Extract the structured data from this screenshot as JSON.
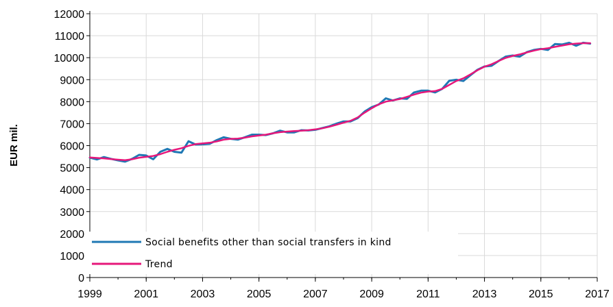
{
  "chart_data": {
    "type": "line",
    "ylabel": "EUR mil.",
    "xlabel": "",
    "xlim": [
      1999,
      2017
    ],
    "ylim": [
      0,
      12000
    ],
    "x_ticks": [
      1999,
      2001,
      2003,
      2005,
      2007,
      2009,
      2011,
      2013,
      2015,
      2017
    ],
    "y_ticks": [
      0,
      1000,
      2000,
      3000,
      4000,
      5000,
      6000,
      7000,
      8000,
      9000,
      10000,
      11000,
      12000
    ],
    "grid": true,
    "legend_position": "bottom-left",
    "x": [
      1999.0,
      1999.25,
      1999.5,
      1999.75,
      2000.0,
      2000.25,
      2000.5,
      2000.75,
      2001.0,
      2001.25,
      2001.5,
      2001.75,
      2002.0,
      2002.25,
      2002.5,
      2002.75,
      2003.0,
      2003.25,
      2003.5,
      2003.75,
      2004.0,
      2004.25,
      2004.5,
      2004.75,
      2005.0,
      2005.25,
      2005.5,
      2005.75,
      2006.0,
      2006.25,
      2006.5,
      2006.75,
      2007.0,
      2007.25,
      2007.5,
      2007.75,
      2008.0,
      2008.25,
      2008.5,
      2008.75,
      2009.0,
      2009.25,
      2009.5,
      2009.75,
      2010.0,
      2010.25,
      2010.5,
      2010.75,
      2011.0,
      2011.25,
      2011.5,
      2011.75,
      2012.0,
      2012.25,
      2012.5,
      2012.75,
      2013.0,
      2013.25,
      2013.5,
      2013.75,
      2014.0,
      2014.25,
      2014.5,
      2014.75,
      2015.0,
      2015.25,
      2015.5,
      2015.75,
      2016.0,
      2016.25,
      2016.5,
      2016.75
    ],
    "series": [
      {
        "name": "Social benefits other than social transfers in kind",
        "color": "#1f78b4",
        "values": [
          5450,
          5370,
          5480,
          5400,
          5330,
          5270,
          5400,
          5580,
          5550,
          5380,
          5720,
          5850,
          5720,
          5680,
          6200,
          6050,
          6060,
          6080,
          6250,
          6380,
          6310,
          6270,
          6380,
          6500,
          6500,
          6480,
          6560,
          6680,
          6600,
          6600,
          6700,
          6690,
          6720,
          6800,
          6880,
          7000,
          7100,
          7100,
          7250,
          7550,
          7750,
          7870,
          8150,
          8050,
          8150,
          8130,
          8420,
          8500,
          8500,
          8420,
          8580,
          8950,
          9000,
          8940,
          9200,
          9450,
          9600,
          9630,
          9850,
          10050,
          10100,
          10050,
          10250,
          10350,
          10400,
          10350,
          10620,
          10600,
          10680,
          10540,
          10680,
          10640
        ]
      },
      {
        "name": "Trend",
        "color": "#e6177a",
        "values": [
          5460,
          5440,
          5420,
          5390,
          5360,
          5340,
          5380,
          5450,
          5490,
          5530,
          5610,
          5720,
          5810,
          5880,
          5990,
          6070,
          6100,
          6130,
          6190,
          6270,
          6310,
          6320,
          6360,
          6420,
          6460,
          6500,
          6560,
          6610,
          6640,
          6660,
          6680,
          6700,
          6740,
          6790,
          6860,
          6950,
          7040,
          7130,
          7280,
          7500,
          7700,
          7880,
          8000,
          8060,
          8120,
          8220,
          8320,
          8410,
          8460,
          8480,
          8580,
          8760,
          8940,
          9060,
          9240,
          9430,
          9590,
          9700,
          9850,
          9990,
          10080,
          10150,
          10240,
          10320,
          10390,
          10430,
          10490,
          10550,
          10610,
          10640,
          10660,
          10660
        ]
      }
    ]
  }
}
